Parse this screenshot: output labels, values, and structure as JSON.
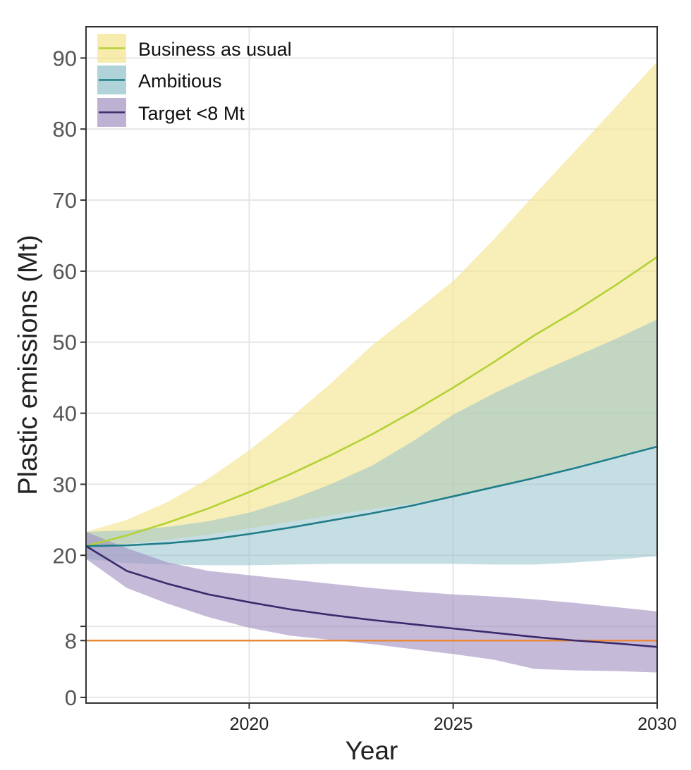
{
  "chart_data": {
    "type": "area",
    "title": "",
    "xlabel": "Year",
    "ylabel": "Plastic emissions (Mt)",
    "xlim": [
      2016,
      2030
    ],
    "ylim": [
      -0.8,
      94.4
    ],
    "x_ticks": [
      2020,
      2025,
      2030
    ],
    "y_ticks": [
      0,
      8,
      10,
      20,
      30,
      40,
      50,
      60,
      70,
      80,
      90
    ],
    "y_tick_labels": [
      "0",
      "8",
      "",
      "20",
      "30",
      "40",
      "50",
      "60",
      "70",
      "80",
      "90"
    ],
    "grid": true,
    "legend_position": "top-left",
    "x": [
      2016,
      2017,
      2018,
      2019,
      2020,
      2021,
      2022,
      2023,
      2024,
      2025,
      2026,
      2027,
      2028,
      2029,
      2030
    ],
    "series": [
      {
        "name": "Business as usual",
        "line_color": "#b3d234",
        "fill_color": "#f3e48c",
        "values": [
          21.3,
          22.8,
          24.6,
          26.6,
          28.9,
          31.4,
          34.1,
          37.0,
          40.2,
          43.6,
          47.2,
          51.0,
          54.4,
          58.1,
          62.0
        ],
        "upper": [
          23.3,
          25.0,
          27.5,
          30.8,
          34.8,
          39.3,
          44.2,
          49.5,
          54.0,
          58.6,
          64.5,
          70.8,
          77.0,
          83.2,
          89.5
        ],
        "lower": [
          21.3,
          21.6,
          22.2,
          22.9,
          23.8,
          24.7,
          25.6,
          26.5,
          27.3,
          28.2,
          29.5,
          31.0,
          32.5,
          34.0,
          35.5
        ]
      },
      {
        "name": "Ambitious",
        "line_color": "#1f7d88",
        "fill_color": "#8fc0cb",
        "values": [
          21.3,
          21.4,
          21.7,
          22.2,
          23.0,
          23.9,
          24.9,
          25.9,
          27.0,
          28.3,
          29.6,
          30.9,
          32.3,
          33.8,
          35.3
        ],
        "upper": [
          23.3,
          23.5,
          24.0,
          24.8,
          26.0,
          27.8,
          30.0,
          32.6,
          36.0,
          39.8,
          42.8,
          45.5,
          48.0,
          50.5,
          53.2
        ],
        "lower": [
          19.5,
          18.9,
          18.7,
          18.6,
          18.6,
          18.7,
          18.8,
          18.8,
          18.8,
          18.8,
          18.7,
          18.7,
          19.0,
          19.4,
          19.9
        ]
      },
      {
        "name": "Target <8 Mt",
        "line_color": "#3a2a6c",
        "fill_color": "#a291c2",
        "values": [
          21.3,
          17.8,
          16.0,
          14.5,
          13.4,
          12.4,
          11.6,
          10.9,
          10.3,
          9.7,
          9.1,
          8.5,
          8.0,
          7.6,
          7.1
        ],
        "upper": [
          23.3,
          21.0,
          19.0,
          17.8,
          17.2,
          16.6,
          16.0,
          15.4,
          14.9,
          14.5,
          14.2,
          13.8,
          13.3,
          12.7,
          12.1
        ],
        "lower": [
          19.5,
          15.4,
          13.2,
          11.3,
          9.8,
          8.7,
          8.1,
          7.5,
          6.8,
          6.1,
          5.3,
          4.0,
          3.8,
          3.7,
          3.5
        ]
      }
    ],
    "reference_line": {
      "y": 8,
      "color": "#e8893a"
    }
  }
}
